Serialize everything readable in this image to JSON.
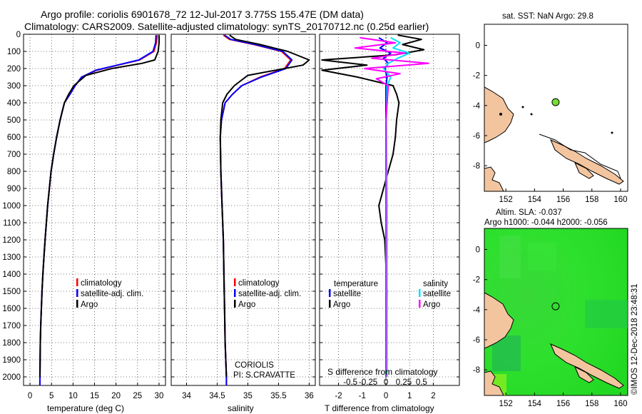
{
  "title": {
    "line1": "Argo profile: coriolis 6901678_72 12-Jul-2017 3.775S 155.47E (DM data)",
    "line2": "Climatology: CARS2009. Satellite-adjusted climatology: synTS_20170712.nc (0.25d earlier)"
  },
  "colors": {
    "climatology": "#ff0000",
    "satellite": "#0000ff",
    "argo": "#000000",
    "sal_satellite": "#00e0ff",
    "sal_argo": "#ff00ff",
    "land": "#f3c59f",
    "ocean": "#22dd22"
  },
  "chart_data": [
    {
      "type": "line",
      "name": "temperature",
      "xlabel": "temperature (deg C)",
      "xlim": [
        -1.5,
        31.5
      ],
      "ylim": [
        2050,
        0
      ],
      "xticks": [
        0,
        5,
        10,
        15,
        20,
        25,
        30
      ],
      "xtick_labels": [
        "0",
        "5",
        "10",
        "15",
        "20",
        "25",
        "30"
      ],
      "yticks": [
        0,
        100,
        200,
        300,
        400,
        500,
        600,
        700,
        800,
        900,
        1000,
        1100,
        1200,
        1300,
        1400,
        1500,
        1600,
        1700,
        1800,
        1900,
        2000
      ],
      "ytick_labels": [
        "0",
        "100",
        "200",
        "300",
        "400",
        "500",
        "600",
        "700",
        "800",
        "900",
        "1000",
        "1100",
        "1200",
        "1300",
        "1400",
        "1500",
        "1600",
        "1700",
        "1800",
        "1900",
        "2000"
      ],
      "legend": [
        "climatology",
        "satellite-adj. clim.",
        "Argo"
      ],
      "series": [
        {
          "name": "climatology",
          "color": "#ff0000",
          "x": [
            29.6,
            29.4,
            28.8,
            25.5,
            20.5,
            15.5,
            12,
            10.5,
            9.3,
            8,
            7,
            6.2,
            5.5,
            4.9,
            4.5,
            4.1,
            3.8,
            3.5,
            3.25,
            3,
            2.8,
            2.65,
            2.5,
            2.4,
            2.3
          ],
          "y": [
            5,
            50,
            100,
            150,
            180,
            210,
            250,
            300,
            350,
            400,
            500,
            600,
            700,
            800,
            900,
            1000,
            1100,
            1200,
            1300,
            1400,
            1500,
            1600,
            1700,
            1800,
            2050
          ]
        },
        {
          "name": "satellite-adj. clim.",
          "color": "#0000ff",
          "x": [
            29.3,
            29.2,
            28.6,
            25.3,
            20.3,
            15.3,
            12,
            10.5,
            9.3,
            8,
            7,
            6.2,
            5.5,
            4.9,
            4.5,
            4.1,
            3.8,
            3.5,
            3.25,
            3,
            2.8,
            2.65,
            2.5,
            2.4,
            2.3
          ],
          "y": [
            5,
            50,
            100,
            150,
            180,
            210,
            250,
            300,
            350,
            400,
            500,
            600,
            700,
            800,
            900,
            1000,
            1100,
            1200,
            1300,
            1400,
            1500,
            1600,
            1700,
            1800,
            2050
          ]
        },
        {
          "name": "Argo",
          "color": "#000000",
          "x": [
            30,
            30,
            29.8,
            29,
            26,
            19,
            13,
            10.2,
            9,
            8,
            7,
            6.2,
            5.5,
            4.9,
            4.5,
            4.1,
            3.8,
            3.5,
            3.25,
            3,
            2.8,
            2.65,
            2.5,
            2.4,
            2.3
          ],
          "y": [
            5,
            50,
            100,
            150,
            170,
            200,
            240,
            300,
            350,
            400,
            500,
            600,
            700,
            800,
            900,
            1000,
            1100,
            1200,
            1300,
            1400,
            1500,
            1600,
            1700,
            1800,
            2000
          ]
        }
      ]
    },
    {
      "type": "line",
      "name": "salinity",
      "xlabel": "salinity",
      "xlim": [
        33.75,
        36.1
      ],
      "ylim": [
        2050,
        0
      ],
      "xticks": [
        34,
        34.5,
        35,
        35.5,
        36
      ],
      "xtick_labels": [
        "34",
        "34.5",
        "35",
        "35.5",
        "36"
      ],
      "legend": [
        "climatology",
        "satellite-adj. clim.",
        "Argo"
      ],
      "annotation": [
        "CORIOLIS",
        "PI: S.CRAVATTE"
      ],
      "series": [
        {
          "name": "climatology",
          "color": "#ff0000",
          "x": [
            34.6,
            34.7,
            35.1,
            35.55,
            35.7,
            35.6,
            35.2,
            34.9,
            34.75,
            34.63,
            34.57,
            34.55,
            34.56,
            34.58,
            34.6,
            34.61,
            34.62,
            34.63,
            34.64,
            34.65,
            34.65
          ],
          "y": [
            5,
            30,
            60,
            100,
            150,
            200,
            250,
            300,
            350,
            400,
            500,
            600,
            800,
            1000,
            1200,
            1400,
            1600,
            1800,
            1900,
            2000,
            2050
          ]
        },
        {
          "name": "satellite-adj. clim.",
          "color": "#0000ff",
          "x": [
            34.62,
            34.72,
            35.12,
            35.57,
            35.72,
            35.62,
            35.22,
            34.9,
            34.75,
            34.63,
            34.57,
            34.55,
            34.56,
            34.58,
            34.6,
            34.61,
            34.62,
            34.63,
            34.64,
            34.65,
            34.65
          ],
          "y": [
            5,
            30,
            60,
            100,
            150,
            200,
            250,
            300,
            350,
            400,
            500,
            600,
            800,
            1000,
            1200,
            1400,
            1600,
            1800,
            1900,
            2000,
            2050
          ]
        },
        {
          "name": "Argo",
          "color": "#000000",
          "x": [
            34.7,
            34.8,
            35.2,
            35.65,
            36.0,
            35.9,
            35.0,
            34.78,
            34.66,
            34.59,
            34.56,
            34.55,
            34.56,
            34.58,
            34.6,
            34.61,
            34.62,
            34.63,
            34.64,
            34.65
          ],
          "y": [
            5,
            30,
            60,
            100,
            150,
            180,
            240,
            300,
            350,
            400,
            500,
            600,
            800,
            1000,
            1200,
            1400,
            1600,
            1800,
            1900,
            2000
          ]
        }
      ]
    },
    {
      "type": "line",
      "name": "differences",
      "xlabel": "T difference from climatology",
      "xlabel_top": "S difference from climatology",
      "xlim": [
        -2.8,
        3.1
      ],
      "ylim": [
        2050,
        0
      ],
      "xticks": [
        -2,
        -1,
        0,
        1,
        2
      ],
      "xtick_labels": [
        "-2",
        "-1",
        "0",
        "1",
        "2"
      ],
      "xticks_top": [
        -1.5,
        -0.75,
        0,
        0.75,
        1.5
      ],
      "xtick_labels_top": [
        "-0.5",
        "-0.25",
        "0",
        "0.25",
        "0.5"
      ],
      "legend_left": {
        "title": "temperature",
        "items": [
          "satellite",
          "Argo"
        ]
      },
      "legend_right": {
        "title": "salinity",
        "items": [
          "satellite",
          "Argo"
        ]
      },
      "series": [
        {
          "name": "T satellite",
          "color": "#0000ff",
          "x": [
            -0.3,
            0.05,
            -0.25,
            0.2,
            -0.1,
            0.1,
            -0.05,
            0.05,
            0,
            0,
            0,
            0,
            0
          ],
          "y": [
            20,
            50,
            80,
            110,
            140,
            170,
            200,
            250,
            300,
            500,
            1000,
            1500,
            2000
          ]
        },
        {
          "name": "T Argo",
          "color": "#000000",
          "x": [
            0.5,
            1.5,
            0.7,
            1.6,
            0.4,
            -2.7,
            -0.8,
            -2.7,
            -1.2,
            0.3,
            0.45,
            0.55,
            0.45,
            0.4,
            0.3,
            0.1,
            -0.1,
            -0.3,
            -0.2,
            -0.05,
            0.05,
            0
          ],
          "y": [
            5,
            30,
            60,
            90,
            120,
            150,
            180,
            210,
            250,
            300,
            350,
            400,
            500,
            600,
            700,
            800,
            900,
            1000,
            1100,
            1200,
            1500,
            2000
          ]
        },
        {
          "name": "S satellite",
          "color": "#00e0ff",
          "x": [
            0.2,
            0.6,
            0.3,
            1.0,
            0.5,
            0.1,
            -0.1,
            0.2,
            0.05,
            0.02,
            0.05,
            0.05,
            0.05
          ],
          "y": [
            20,
            50,
            80,
            110,
            140,
            170,
            200,
            250,
            300,
            500,
            1000,
            1500,
            2000
          ]
        },
        {
          "name": "S Argo",
          "color": "#ff00ff",
          "x": [
            -1.1,
            0.4,
            -1.3,
            0.8,
            -0.6,
            1.8,
            -0.9,
            0.6,
            -0.4,
            0.1,
            0,
            0,
            0
          ],
          "y": [
            20,
            50,
            80,
            110,
            140,
            170,
            200,
            230,
            260,
            300,
            500,
            1000,
            2000
          ]
        }
      ]
    },
    {
      "type": "map",
      "name": "sst-map",
      "title": "sat. SST: NaN Argo: 29.8",
      "xlim": [
        150.5,
        160.5
      ],
      "ylim": [
        -9.7,
        1.4
      ],
      "xticks": [
        152,
        154,
        156,
        158,
        160
      ],
      "xtick_labels": [
        "152",
        "154",
        "156",
        "158",
        "160"
      ],
      "yticks": [
        0,
        -2,
        -4,
        -6,
        -8
      ],
      "ytick_labels": [
        "0",
        "-2",
        "-4",
        "-6",
        "-8"
      ],
      "profile_location": {
        "lon": 155.47,
        "lat": -3.775
      }
    },
    {
      "type": "map",
      "name": "sla-map",
      "title": "Altim. SLA: -0.037",
      "subtitle": "Argo h1000: -0.044 h2000: -0.056",
      "xlim": [
        150.5,
        160.5
      ],
      "ylim": [
        -9.7,
        1.4
      ],
      "xticks": [
        152,
        154,
        156,
        158,
        160
      ],
      "xtick_labels": [
        "152",
        "154",
        "156",
        "158",
        "160"
      ],
      "yticks": [
        0,
        -2,
        -4,
        -6,
        -8
      ],
      "ytick_labels": [
        "0",
        "-2",
        "-4",
        "-6",
        "-8"
      ],
      "profile_location": {
        "lon": 155.47,
        "lat": -3.775
      }
    }
  ],
  "footer": "©IMOS 12-Dec-2018 23:48:31"
}
